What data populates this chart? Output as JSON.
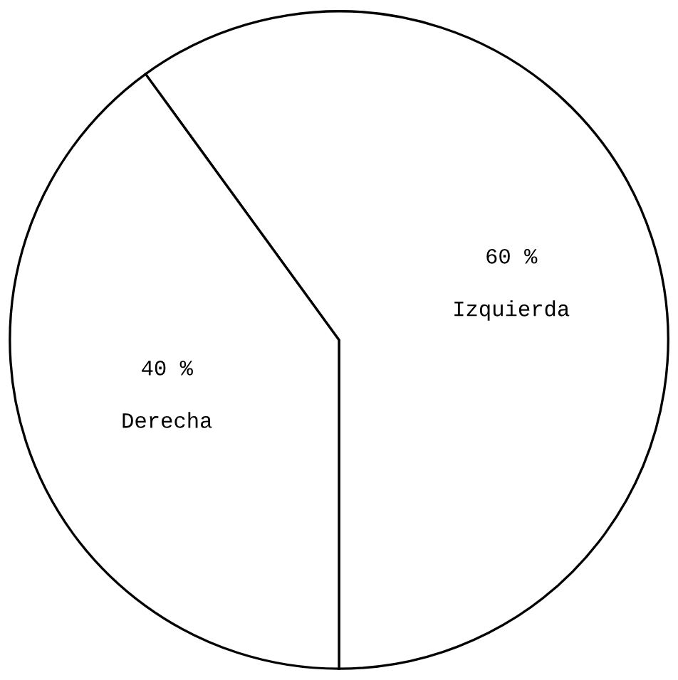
{
  "chart_data": {
    "type": "pie",
    "categories": [
      "Izquierda",
      "Derecha"
    ],
    "values": [
      60,
      40
    ],
    "value_labels": [
      "60 %",
      "40 %"
    ],
    "colors": [
      "#ffffff",
      "#ffffff"
    ],
    "legend": false
  }
}
